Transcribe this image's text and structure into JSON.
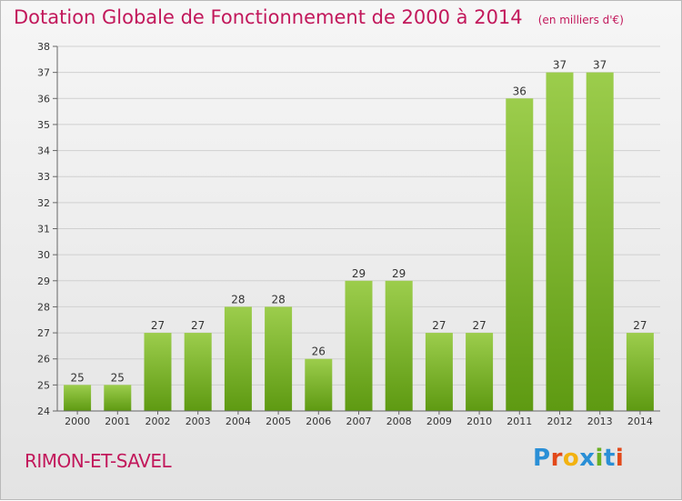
{
  "header": {
    "title": "Dotation Globale de Fonctionnement de 2000 à 2014",
    "unit": "(en milliers d'€)"
  },
  "footer": {
    "commune": "RIMON-ET-SAVEL",
    "brand_letters": [
      "P",
      "r",
      "o",
      "x",
      "i",
      "t",
      "i"
    ]
  },
  "colors": {
    "title": "#c2185b",
    "bar_top": "#9ccd4c",
    "bar_bottom": "#5e9a12",
    "brand": [
      "#2a8fd6",
      "#e2491a",
      "#f2b211",
      "#2a8fd6",
      "#6ab023",
      "#2a8fd6",
      "#e2491a"
    ]
  },
  "chart_data": {
    "type": "bar",
    "title": "Dotation Globale de Fonctionnement de 2000 à 2014",
    "subtitle": "(en milliers d'€)",
    "xlabel": "",
    "ylabel": "",
    "categories": [
      "2000",
      "2001",
      "2002",
      "2003",
      "2004",
      "2005",
      "2006",
      "2007",
      "2008",
      "2009",
      "2010",
      "2011",
      "2012",
      "2013",
      "2014"
    ],
    "values": [
      25,
      25,
      27,
      27,
      28,
      28,
      26,
      29,
      29,
      27,
      27,
      36,
      37,
      37,
      27
    ],
    "ylim": [
      24,
      38
    ],
    "yticks": [
      24,
      25,
      26,
      27,
      28,
      29,
      30,
      31,
      32,
      33,
      34,
      35,
      36,
      37,
      38
    ],
    "grid": true,
    "legend": "none"
  }
}
